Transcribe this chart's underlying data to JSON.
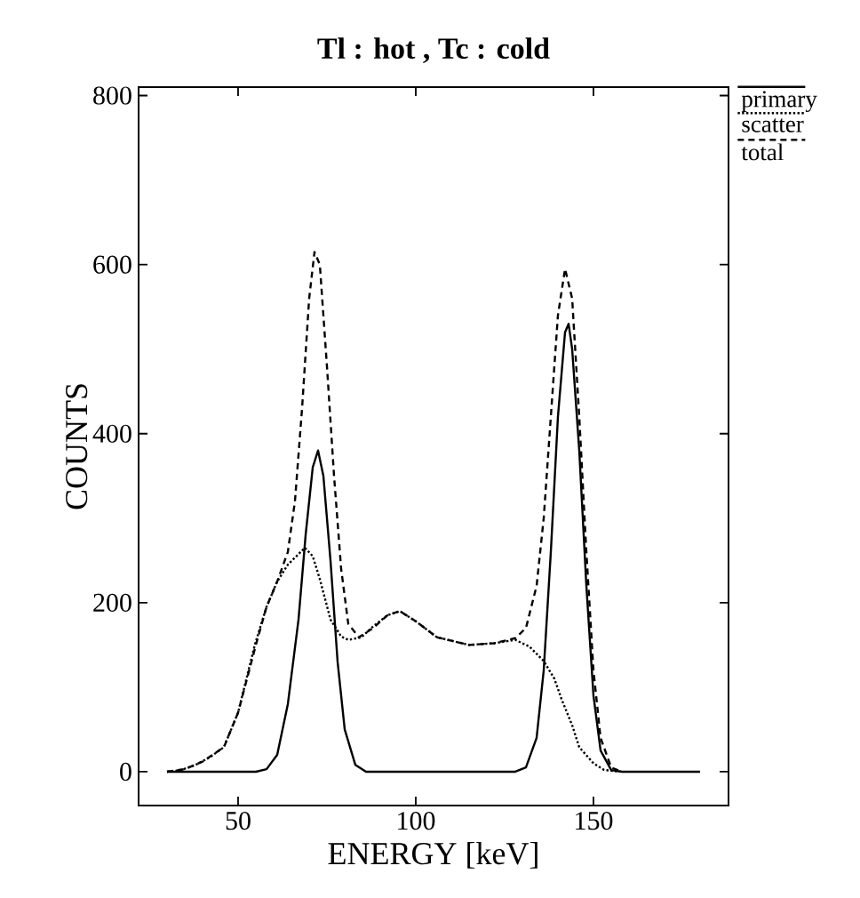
{
  "chart_data": {
    "type": "line",
    "title": "Tl : hot , Tc : cold",
    "xlabel": "ENERGY [keV]",
    "ylabel": "COUNTS",
    "xlim": [
      22,
      188
    ],
    "ylim": [
      -40,
      810
    ],
    "xticks": [
      50,
      100,
      150
    ],
    "yticks": [
      0,
      200,
      400,
      600,
      800
    ],
    "legend": "top right",
    "grid": false,
    "marker": "none",
    "series": [
      {
        "name": "primary",
        "color": "#000000",
        "line_style": "solid",
        "x": [
          30,
          55,
          58,
          61,
          64,
          67,
          69,
          71,
          72.5,
          74,
          76,
          78,
          80,
          83,
          86,
          128,
          131,
          134,
          136,
          138,
          140,
          142,
          143,
          144,
          146,
          148,
          150,
          152,
          155,
          158,
          180
        ],
        "values": [
          0,
          0,
          3,
          20,
          80,
          180,
          280,
          360,
          380,
          350,
          250,
          130,
          50,
          8,
          0,
          0,
          5,
          40,
          120,
          260,
          420,
          520,
          530,
          500,
          380,
          220,
          90,
          25,
          2,
          0,
          0
        ]
      },
      {
        "name": "scatter",
        "color": "#000000",
        "line_style": "dotted",
        "x": [
          30,
          34,
          38,
          42,
          46,
          50,
          54.7,
          58,
          61,
          64,
          68.8,
          71,
          73,
          76,
          79,
          81,
          84.7,
          88,
          92,
          95.5,
          100,
          106,
          115,
          122,
          128,
          132,
          136,
          139,
          141,
          144,
          146,
          150,
          153,
          158
        ],
        "values": [
          0,
          2,
          8,
          17,
          29,
          70,
          150,
          195,
          225,
          245,
          265,
          255,
          228,
          180,
          160,
          156,
          159,
          172,
          185,
          190,
          178,
          159,
          150,
          152,
          156,
          148,
          131,
          110,
          86,
          55,
          29,
          10,
          2,
          0
        ]
      },
      {
        "name": "total",
        "color": "#000000",
        "line_style": "dashed",
        "x": [
          30,
          35,
          40,
          46,
          50,
          55,
          58,
          61,
          64,
          66,
          68,
          70,
          71.5,
          73,
          75,
          77,
          79,
          81,
          84,
          88,
          92,
          95.5,
          100,
          106,
          115,
          122,
          128,
          131,
          134,
          136,
          138,
          140,
          142,
          144,
          146,
          148,
          150,
          152,
          155,
          158
        ],
        "values": [
          0,
          3,
          12,
          29,
          70,
          150,
          195,
          225,
          260,
          320,
          430,
          560,
          615,
          600,
          480,
          350,
          240,
          175,
          159,
          170,
          185,
          190,
          178,
          159,
          150,
          152,
          158,
          170,
          220,
          300,
          420,
          540,
          595,
          560,
          420,
          260,
          120,
          40,
          5,
          0
        ]
      }
    ]
  }
}
